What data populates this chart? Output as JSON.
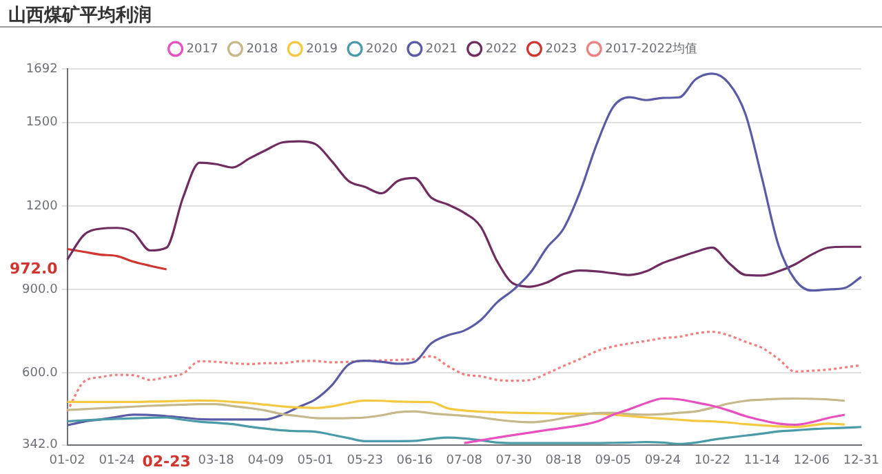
{
  "chart_data": {
    "type": "line",
    "title": "山西煤矿平均利润",
    "categories": [
      "01-02",
      null,
      null,
      "01-24",
      null,
      null,
      "02-23",
      null,
      null,
      "03-18",
      null,
      null,
      "04-09",
      null,
      null,
      "05-01",
      null,
      null,
      "05-23",
      null,
      null,
      "06-16",
      null,
      null,
      "07-08",
      null,
      null,
      "07-30",
      null,
      null,
      "08-18",
      null,
      null,
      "09-05",
      null,
      null,
      "09-24",
      null,
      null,
      "10-22",
      null,
      null,
      "11-14",
      null,
      null,
      "12-06",
      null,
      null,
      "12-31"
    ],
    "ylim": [
      342,
      1692
    ],
    "yticks": [
      {
        "value": 342,
        "label": "342.0"
      },
      {
        "value": 600,
        "label": "600.0"
      },
      {
        "value": 900,
        "label": "900.0"
      },
      {
        "value": 972,
        "label": "972.0"
      },
      1200,
      1500,
      1692
    ],
    "grid": "y",
    "legend": "top",
    "series": [
      {
        "name": "2017",
        "color": "#e84fc0",
        "values": [
          null,
          null,
          null,
          null,
          null,
          null,
          null,
          null,
          null,
          null,
          null,
          null,
          null,
          null,
          null,
          null,
          null,
          null,
          null,
          null,
          null,
          null,
          null,
          null,
          348,
          358,
          368,
          377,
          386,
          395,
          403,
          412,
          425,
          450,
          470,
          492,
          508,
          505,
          494,
          482,
          465,
          445,
          430,
          418,
          414,
          423,
          438,
          450,
          null
        ]
      },
      {
        "name": "2018",
        "color": "#c5b98a",
        "values": [
          467,
          470,
          473,
          476,
          479,
          482,
          484,
          486,
          488,
          488,
          481,
          474,
          465,
          452,
          445,
          438,
          437,
          438,
          440,
          448,
          459,
          462,
          455,
          450,
          446,
          440,
          432,
          426,
          423,
          428,
          438,
          448,
          456,
          457,
          452,
          450,
          452,
          457,
          462,
          475,
          490,
          500,
          504,
          507,
          508,
          507,
          505,
          500,
          null
        ]
      },
      {
        "name": "2019",
        "color": "#f5c842",
        "values": [
          496,
          496,
          496,
          496,
          496,
          497,
          498,
          500,
          501,
          500,
          496,
          492,
          486,
          480,
          476,
          474,
          480,
          492,
          501,
          500,
          497,
          496,
          495,
          473,
          465,
          461,
          459,
          457,
          456,
          455,
          454,
          454,
          454,
          450,
          445,
          440,
          436,
          432,
          428,
          426,
          422,
          416,
          412,
          408,
          406,
          412,
          418,
          415,
          null
        ]
      },
      {
        "name": "2020",
        "color": "#4a9aa8",
        "values": [
          426,
          430,
          433,
          435,
          437,
          439,
          440,
          432,
          425,
          421,
          416,
          407,
          400,
          394,
          391,
          389,
          378,
          366,
          355,
          355,
          355,
          356,
          363,
          368,
          365,
          358,
          350,
          348,
          348,
          348,
          348,
          348,
          348,
          349,
          350,
          352,
          350,
          345,
          350,
          360,
          368,
          375,
          382,
          390,
          394,
          398,
          401,
          403,
          406
        ]
      },
      {
        "name": "2021",
        "color": "#5a5aa6",
        "values": [
          412,
          425,
          433,
          442,
          450,
          449,
          445,
          440,
          434,
          433,
          433,
          433,
          433,
          450,
          478,
          505,
          556,
          630,
          644,
          640,
          633,
          640,
          706,
          735,
          752,
          790,
          854,
          900,
          960,
          1050,
          1118,
          1250,
          1420,
          1555,
          1590,
          1580,
          1588,
          1590,
          1655,
          1675,
          1640,
          1530,
          1300,
          1058,
          935,
          896,
          900,
          905,
          945
        ]
      },
      {
        "name": "2022",
        "color": "#6e2d5e",
        "values": [
          1007,
          1095,
          1118,
          1121,
          1105,
          1040,
          1050,
          1230,
          1355,
          1350,
          1338,
          1370,
          1400,
          1428,
          1432,
          1422,
          1360,
          1290,
          1268,
          1245,
          1290,
          1300,
          1230,
          1205,
          1175,
          1125,
          1000,
          920,
          910,
          925,
          955,
          968,
          965,
          958,
          952,
          965,
          995,
          1015,
          1035,
          1050,
          995,
          952,
          950,
          965,
          990,
          1025,
          1050,
          1053,
          1053
        ]
      },
      {
        "name": "2023",
        "color": "#d0352f",
        "values": [
          1045,
          1035,
          1025,
          1020,
          1000,
          985,
          972,
          null,
          null,
          null,
          null,
          null,
          null,
          null,
          null,
          null,
          null,
          null,
          null,
          null,
          null,
          null,
          null,
          null,
          null,
          null,
          null,
          null,
          null,
          null,
          null,
          null,
          null,
          null,
          null,
          null,
          null,
          null,
          null,
          null,
          null,
          null,
          null,
          null,
          null,
          null,
          null,
          null,
          null
        ]
      },
      {
        "name": "2017-2022均值",
        "color": "#f08080",
        "line_style": "dotted",
        "values": [
          462,
          568,
          585,
          593,
          592,
          575,
          585,
          598,
          642,
          640,
          635,
          632,
          635,
          635,
          642,
          643,
          638,
          640,
          644,
          645,
          647,
          650,
          660,
          625,
          595,
          588,
          575,
          572,
          575,
          598,
          625,
          650,
          678,
          695,
          706,
          715,
          725,
          730,
          742,
          748,
          735,
          712,
          690,
          650,
          605,
          608,
          612,
          620,
          628
        ]
      }
    ]
  }
}
